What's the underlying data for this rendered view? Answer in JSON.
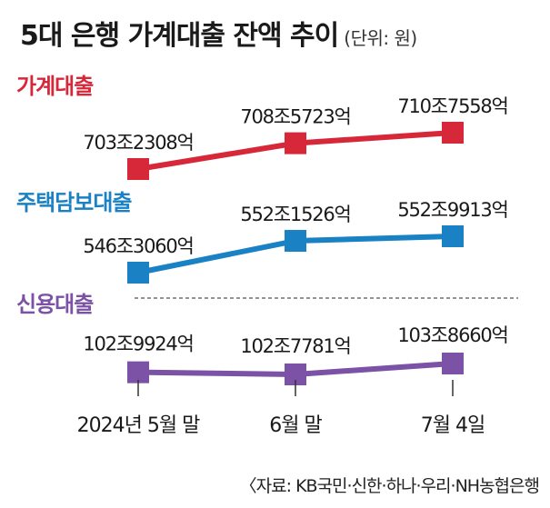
{
  "title": "5대 은행 가계대출 잔액 추이",
  "unit": "(단위: 원)",
  "source": "〈자료: KB국민·신한·하나·우리·NH농협은행",
  "chart_data": {
    "type": "line",
    "categories": [
      "2024년 5월 말",
      "6월 말",
      "7월 4일"
    ],
    "series": [
      {
        "name": "가계대출",
        "color": "#d7283a",
        "values": [
          7032308,
          7085723,
          7107558
        ],
        "labels": [
          "703조2308억",
          "708조5723억",
          "710조7558억"
        ]
      },
      {
        "name": "주택담보대출",
        "color": "#1a82c4",
        "values": [
          5463060,
          5521526,
          5529913
        ],
        "labels": [
          "546조3060억",
          "552조1526억",
          "552조9913억"
        ]
      },
      {
        "name": "신용대출",
        "color": "#7b52a5",
        "values": [
          1029924,
          1027781,
          1038660
        ],
        "labels": [
          "102조9924억",
          "102조7781억",
          "103조8660억"
        ]
      }
    ]
  }
}
